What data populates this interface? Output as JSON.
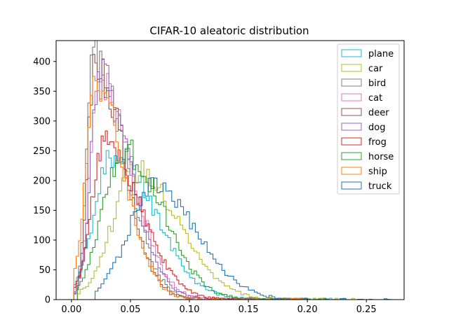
{
  "chart_data": {
    "type": "histogram",
    "title": "CIFAR-10 aleatoric distribution",
    "xlabel": "",
    "ylabel": "",
    "xlim": [
      -0.013,
      0.282
    ],
    "ylim": [
      0,
      435
    ],
    "x_ticks": [
      0.0,
      0.05,
      0.1,
      0.15,
      0.2,
      0.25
    ],
    "x_tick_labels": [
      "0.00",
      "0.05",
      "0.10",
      "0.15",
      "0.20",
      "0.25"
    ],
    "y_ticks": [
      0,
      50,
      100,
      150,
      200,
      250,
      300,
      350,
      400
    ],
    "y_tick_labels": [
      "0",
      "50",
      "100",
      "150",
      "200",
      "250",
      "300",
      "350",
      "400"
    ],
    "legend_position": "top-right",
    "grid": false,
    "histtype": "step",
    "series": [
      {
        "name": "plane",
        "color": "#17becf",
        "range": [
          0.002,
          0.23
        ],
        "peak_x": 0.035,
        "peak_y": 248,
        "sd_left": 0.015,
        "sd_right": 0.035
      },
      {
        "name": "car",
        "color": "#bcbd22",
        "range": [
          0.005,
          0.24
        ],
        "peak_x": 0.055,
        "peak_y": 218,
        "sd_left": 0.02,
        "sd_right": 0.036
      },
      {
        "name": "bird",
        "color": "#7f7f7f",
        "range": [
          0.002,
          0.2
        ],
        "peak_x": 0.019,
        "peak_y": 410,
        "sd_left": 0.006,
        "sd_right": 0.026
      },
      {
        "name": "cat",
        "color": "#e377c2",
        "range": [
          0.002,
          0.2
        ],
        "peak_x": 0.024,
        "peak_y": 368,
        "sd_left": 0.008,
        "sd_right": 0.027
      },
      {
        "name": "deer",
        "color": "#8c564b",
        "range": [
          0.002,
          0.2
        ],
        "peak_x": 0.02,
        "peak_y": 400,
        "sd_left": 0.006,
        "sd_right": 0.024
      },
      {
        "name": "dog",
        "color": "#9467bd",
        "range": [
          0.002,
          0.2
        ],
        "peak_x": 0.024,
        "peak_y": 370,
        "sd_left": 0.008,
        "sd_right": 0.026
      },
      {
        "name": "frog",
        "color": "#d62728",
        "range": [
          0.002,
          0.18
        ],
        "peak_x": 0.028,
        "peak_y": 262,
        "sd_left": 0.011,
        "sd_right": 0.03
      },
      {
        "name": "horse",
        "color": "#2ca02c",
        "range": [
          0.005,
          0.22
        ],
        "peak_x": 0.045,
        "peak_y": 250,
        "sd_left": 0.018,
        "sd_right": 0.032
      },
      {
        "name": "ship",
        "color": "#ff7f0e",
        "range": [
          0.002,
          0.2
        ],
        "peak_x": 0.021,
        "peak_y": 350,
        "sd_left": 0.009,
        "sd_right": 0.024
      },
      {
        "name": "truck",
        "color": "#1f77b4",
        "range": [
          0.02,
          0.27
        ],
        "peak_x": 0.07,
        "peak_y": 190,
        "sd_left": 0.022,
        "sd_right": 0.036
      }
    ]
  }
}
